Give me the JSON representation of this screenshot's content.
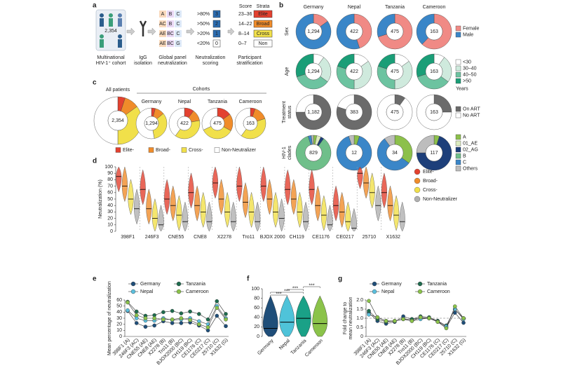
{
  "diagram": {
    "panel": "a",
    "cohort_count": "2,354",
    "steps": [
      [
        "Multinational",
        "HIV-1⁺ cohort"
      ],
      [
        "IgG",
        "isolation"
      ],
      [
        "Global panel",
        "neutralization"
      ],
      [
        "Neutralization",
        "scoring"
      ],
      [
        "Participant",
        "stratification"
      ]
    ],
    "letter_grid": [
      [
        "A",
        "B",
        "C"
      ],
      [
        "AC",
        "B",
        "C"
      ],
      [
        "AE",
        "BC",
        "C"
      ],
      [
        "AE",
        "BC",
        "G"
      ]
    ],
    "thresholds": [
      ">80%",
      ">50%",
      ">20%",
      "<20%"
    ],
    "score_boxes": [
      "3",
      "2",
      "1",
      "0"
    ],
    "score_header": "Score",
    "strata_header": "Strata",
    "score_ranges": [
      "23–36",
      "14–22",
      "8–14",
      "0–7"
    ],
    "strata": [
      "Elite",
      "Broad",
      "Cross",
      "Non"
    ],
    "strata_colors": [
      "#e3412f",
      "#f08c2a",
      "#f1e04a",
      "#ffffff"
    ]
  },
  "chart_data": [
    {
      "panel": "b",
      "type": "donut_grid",
      "columns": [
        "Germany",
        "Nepal",
        "Tanzania",
        "Cameroon"
      ],
      "rows": [
        {
          "label": [
            "Sex"
          ],
          "categories": [
            "Female",
            "Male"
          ],
          "colors": [
            "#f08a85",
            "#3a86c8"
          ],
          "centers": [
            "1,294",
            "422",
            "475",
            "163"
          ],
          "values": [
            [
              15,
              85
            ],
            [
              45,
              55
            ],
            [
              70,
              30
            ],
            [
              62,
              38
            ]
          ]
        },
        {
          "label": [
            "Age"
          ],
          "categories": [
            "<30",
            "30–40",
            "40–50",
            ">50"
          ],
          "colors": [
            "#ffffff",
            "#cfeadd",
            "#6cc3a0",
            "#1a9e77"
          ],
          "legend_note": "Years",
          "centers": [
            "1,294",
            "422",
            "475",
            "163"
          ],
          "values": [
            [
              10,
              25,
              35,
              30
            ],
            [
              15,
              35,
              30,
              20
            ],
            [
              15,
              35,
              30,
              20
            ],
            [
              10,
              25,
              35,
              30
            ]
          ]
        },
        {
          "label": [
            "Treatment",
            "status"
          ],
          "categories": [
            "On ART",
            "No ART"
          ],
          "colors": [
            "#6b6b6b",
            "#ffffff"
          ],
          "centers": [
            "1,182",
            "383",
            "475",
            "163"
          ],
          "values": [
            [
              75,
              25
            ],
            [
              80,
              20
            ],
            [
              10,
              90
            ],
            [
              25,
              75
            ]
          ]
        },
        {
          "label": [
            "HIV-1",
            "clades"
          ],
          "categories": [
            "A",
            "01_AE",
            "02_AG",
            "B",
            "C",
            "Others"
          ],
          "colors": [
            "#8cc04b",
            "#dcebc0",
            "#1d3f7a",
            "#6fbf8a",
            "#3a86c8",
            "#bdbdbd"
          ],
          "centers": [
            "829",
            "12",
            "34",
            "117"
          ],
          "values": [
            [
              3,
              4,
              3,
              85,
              3,
              2
            ],
            [
              5,
              0,
              0,
              0,
              90,
              5
            ],
            [
              35,
              0,
              0,
              0,
              55,
              10
            ],
            [
              5,
              0,
              70,
              0,
              0,
              25
            ]
          ]
        }
      ]
    },
    {
      "panel": "c",
      "type": "donut_group",
      "cohorts_label": "Cohorts",
      "categories": [
        "Elite-",
        "Broad-",
        "Cross-",
        "Non-Neutralizer"
      ],
      "colors": [
        "#e3412f",
        "#f08c2a",
        "#f1e04a",
        "#ffffff"
      ],
      "groups": [
        {
          "name": "All patients",
          "center": "2,354",
          "values": [
            5,
            10,
            35,
            50
          ]
        },
        {
          "name": "Germany",
          "center": "1,294",
          "values": [
            4,
            10,
            33,
            53
          ]
        },
        {
          "name": "Nepal",
          "center": "422",
          "values": [
            10,
            12,
            38,
            40
          ]
        },
        {
          "name": "Tanzania",
          "center": "475",
          "values": [
            15,
            18,
            35,
            32
          ]
        },
        {
          "name": "Cameroon",
          "center": "163",
          "values": [
            5,
            15,
            40,
            40
          ]
        }
      ]
    },
    {
      "panel": "d",
      "type": "violin",
      "ylabel": "Neutralization (%)",
      "categories": [
        "398F1",
        "246F3",
        "CNE55",
        "CNE8",
        "X2278",
        "Tro11",
        "BJOX 2000",
        "CH119",
        "CE1176",
        "CE0217",
        "25710",
        "X1632"
      ],
      "ylim": [
        0,
        100
      ],
      "yticks": [
        0,
        10,
        20,
        30,
        40,
        50,
        60,
        70,
        80,
        90,
        100
      ],
      "series": [
        {
          "name": "Elite-",
          "color": "#e3412f",
          "values": [
            85,
            65,
            50,
            60,
            75,
            70,
            70,
            65,
            65,
            40,
            90,
            60
          ]
        },
        {
          "name": "Broad-",
          "color": "#f08c2a",
          "values": [
            70,
            35,
            40,
            40,
            50,
            45,
            50,
            50,
            40,
            30,
            75,
            40
          ]
        },
        {
          "name": "Cross-",
          "color": "#f1e04a",
          "values": [
            50,
            20,
            25,
            30,
            30,
            30,
            30,
            30,
            25,
            15,
            60,
            25
          ]
        },
        {
          "name": "Non-Neutralizer",
          "color": "#b0b0b0",
          "values": [
            35,
            10,
            15,
            15,
            15,
            15,
            20,
            15,
            10,
            5,
            40,
            15
          ]
        }
      ]
    },
    {
      "panel": "e",
      "type": "line",
      "ylabel": [
        "Mean percentage of neutralization"
      ],
      "categories": [
        "398F1 (A)",
        "246F3 (AC)",
        "CNE55 (AE)",
        "CNE8 (AE)",
        "X2278 (B)",
        "Tro11 (B)",
        "BJOX2000 (BC)",
        "CH119 (BC)",
        "CE1176 (C)",
        "CE0217 (C)",
        "25710 (C)",
        "X1632 (G)"
      ],
      "ylim": [
        0,
        60
      ],
      "yticks": [
        0,
        10,
        20,
        30,
        40,
        50,
        60
      ],
      "series": [
        {
          "name": "Germany",
          "color": "#1f4e79",
          "values": [
            42,
            22,
            16,
            18,
            25,
            22,
            22,
            23,
            18,
            10,
            34,
            17
          ]
        },
        {
          "name": "Tanzania",
          "color": "#1e6b4e",
          "values": [
            57,
            41,
            34,
            35,
            40,
            42,
            38,
            41,
            37,
            28,
            58,
            37
          ]
        },
        {
          "name": "Nepal",
          "color": "#5bc0de",
          "values": [
            43,
            30,
            26,
            26,
            30,
            27,
            28,
            30,
            25,
            20,
            50,
            30
          ]
        },
        {
          "name": "Cameroon",
          "color": "#8bc34a",
          "values": [
            56,
            35,
            30,
            30,
            28,
            28,
            30,
            27,
            20,
            15,
            47,
            28
          ]
        }
      ]
    },
    {
      "panel": "f",
      "type": "violin",
      "categories": [
        "Germany",
        "Nepal",
        "Tanzania",
        "Cameroon"
      ],
      "colors": [
        "#1f4e79",
        "#4fc3d9",
        "#1aa187",
        "#8bc34a"
      ],
      "values": [
        17,
        30,
        38,
        27
      ],
      "ylim": [
        0,
        100
      ],
      "yticks": [
        0,
        20,
        40,
        60,
        80,
        100
      ],
      "annotations": [
        "***",
        "***",
        "***",
        "***"
      ]
    },
    {
      "panel": "g",
      "type": "line",
      "ylabel": [
        "Fold change to",
        "mean neutralization"
      ],
      "categories": [
        "398F1 (A)",
        "246F3 (AC)",
        "CNE55 (AE)",
        "CNE8 (AE)",
        "X2278 (B)",
        "Tro11 (B)",
        "BJOX2000 (BC)",
        "CH119 (BC)",
        "CE1176 (C)",
        "CE0217 (C)",
        "25710 (C)",
        "X1632 (G)"
      ],
      "ylim": [
        0,
        2
      ],
      "yticks": [
        0,
        0.5,
        {
          "value": 1,
          "label": "1.0"
        },
        1.5,
        {
          "value": 2,
          "label": "2.0"
        }
      ],
      "reference_line": 1,
      "series": [
        {
          "name": "Germany",
          "color": "#1f4e79",
          "values": [
            1.3,
            0.85,
            0.7,
            0.8,
            1.1,
            0.95,
            1.0,
            1.0,
            0.85,
            0.5,
            1.3,
            0.75
          ]
        },
        {
          "name": "Tanzania",
          "color": "#1e6b4e",
          "values": [
            1.4,
            0.95,
            0.8,
            0.85,
            0.95,
            0.95,
            1.1,
            1.05,
            0.85,
            0.6,
            1.5,
            1.0
          ]
        },
        {
          "name": "Nepal",
          "color": "#5bc0de",
          "values": [
            1.2,
            1.05,
            0.85,
            0.85,
            0.95,
            0.85,
            0.95,
            1.0,
            0.8,
            0.55,
            1.5,
            0.95
          ]
        },
        {
          "name": "Cameroon",
          "color": "#8bc34a",
          "values": [
            1.95,
            1.05,
            0.85,
            0.85,
            0.95,
            0.85,
            1.05,
            1.0,
            0.8,
            0.45,
            1.65,
            1.0
          ]
        }
      ]
    }
  ]
}
